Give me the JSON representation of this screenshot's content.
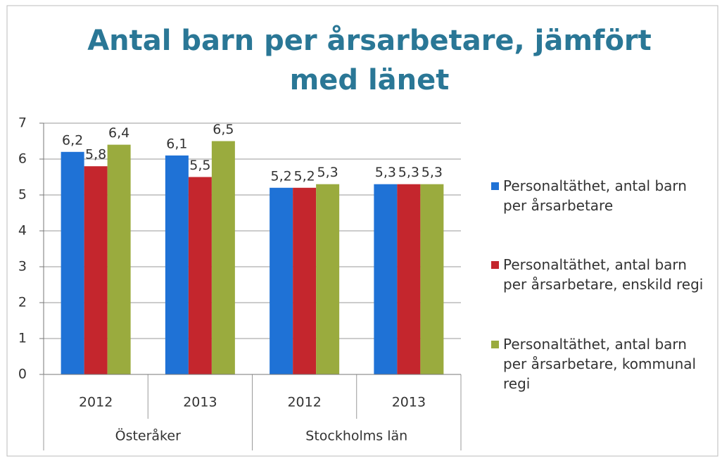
{
  "chart_data": {
    "type": "bar",
    "title": "Antal barn per årsarbetare, jämfört med länet",
    "categories": [
      "2012",
      "2013",
      "2012",
      "2013"
    ],
    "groups": [
      "Österåker",
      "Stockholms län"
    ],
    "series": [
      {
        "name": "Personaltäthet, antal barn per årsarbetare",
        "color": "#1f72d6",
        "values": [
          6.2,
          6.1,
          5.2,
          5.3
        ],
        "value_labels": [
          "6,2",
          "6,1",
          "5,2",
          "5,3"
        ]
      },
      {
        "name": "Personaltäthet, antal barn per årsarbetare, enskild regi",
        "color": "#c4262d",
        "values": [
          5.8,
          5.5,
          5.2,
          5.3
        ],
        "value_labels": [
          "5,8",
          "5,5",
          "5,2",
          "5,3"
        ]
      },
      {
        "name": "Personaltäthet, antal barn per årsarbetare, kommunal regi",
        "color": "#9aab3e",
        "values": [
          6.4,
          6.5,
          5.3,
          5.3
        ],
        "value_labels": [
          "6,4",
          "6,5",
          "5,3",
          "5,3"
        ]
      }
    ],
    "ylim": [
      0,
      7
    ],
    "yticks": [
      0,
      1,
      2,
      3,
      4,
      5,
      6,
      7
    ],
    "grid": true,
    "legend": "right"
  }
}
